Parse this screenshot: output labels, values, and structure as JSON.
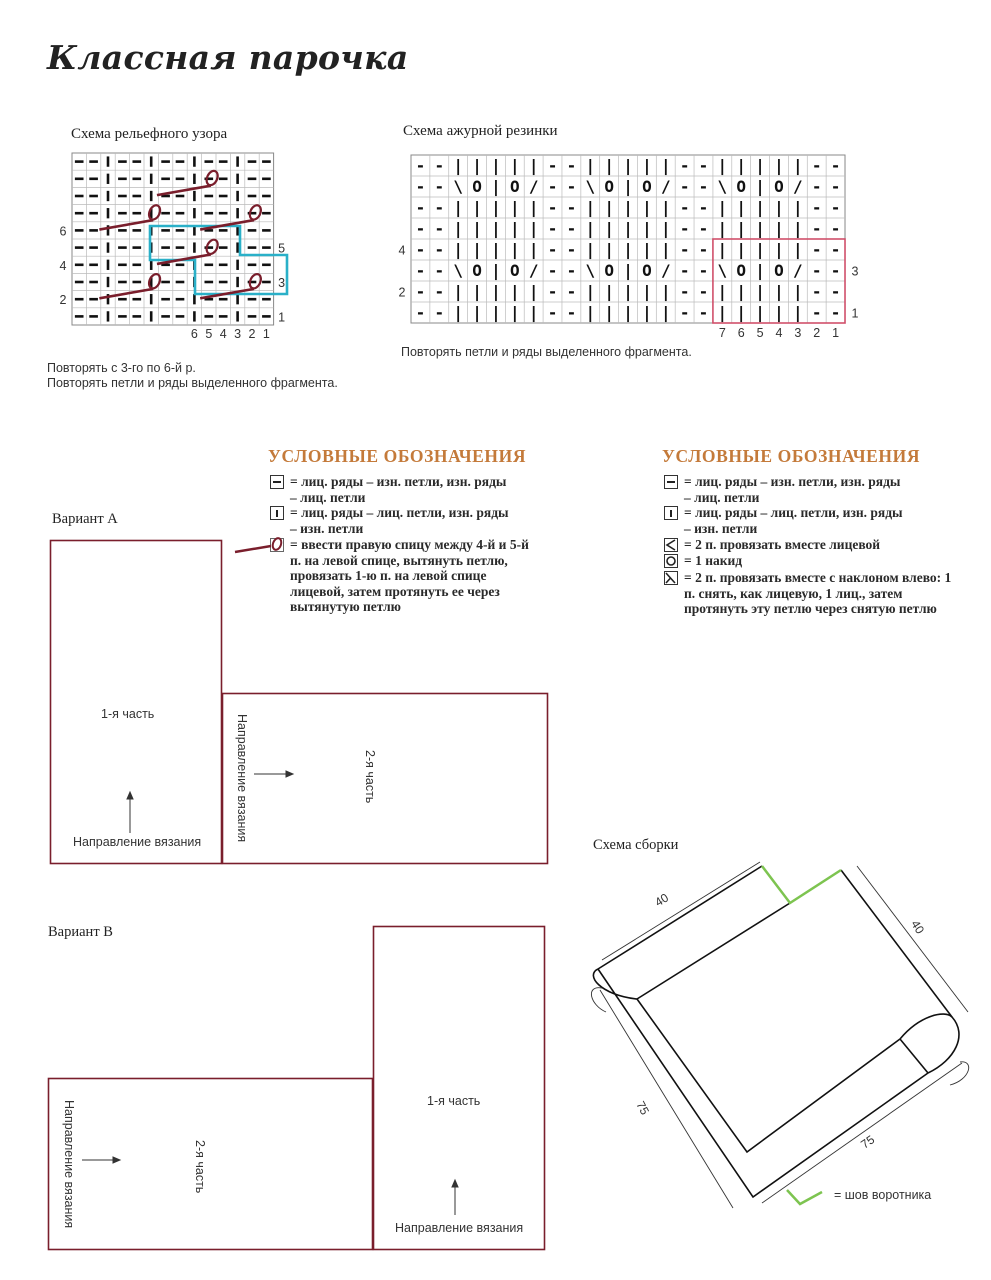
{
  "title": "Классная парочка",
  "relief_chart": {
    "caption": "Схема рельефного узора",
    "rows": [
      "--|--|--|--|--",
      "--|--|--|--|--",
      "--|--|--|--|--",
      "--|--|--|--|--",
      "--|--|--|--|--",
      "--|--|--|--|--",
      "--|--|--|--|--",
      "--|--|--|--|--",
      "--|--|--|--|--",
      "--|--|--|--|--"
    ],
    "loops": [
      {
        "row": 9,
        "col": 10
      },
      {
        "row": 7,
        "col": 6
      },
      {
        "row": 7,
        "col": 13
      },
      {
        "row": 5,
        "col": 10
      },
      {
        "row": 3,
        "col": 6
      },
      {
        "row": 3,
        "col": 13
      }
    ],
    "left_row_labels": [
      "6",
      "4",
      "2"
    ],
    "right_row_labels": [
      "5",
      "3",
      "1"
    ],
    "stitch_labels": [
      "6",
      "5",
      "4",
      "3",
      "2",
      "1"
    ],
    "repeat_color": "#2ab0c8",
    "loop_color": "#7a1e2c",
    "notes": [
      "Повторять с 3-го по 6-й р.",
      "Повторять петли и ряды выделенного фрагмента."
    ]
  },
  "lace_chart": {
    "caption": "Схема ажурной резинки",
    "rows": [
      "--|||||--|||||--|||||--",
      "--\\O|O/--\\O|O/--\\O|O/--",
      "--|||||--|||||--|||||--",
      "--|||||--|||||--|||||--",
      "--|||||--|||||--|||||--",
      "--\\O|O/--\\O|O/--\\O|O/--",
      "--|||||--|||||--|||||--",
      "--|||||--|||||--|||||--"
    ],
    "left_row_labels": [
      "4",
      "2"
    ],
    "right_row_labels": [
      "3",
      "1"
    ],
    "stitch_labels": [
      "7",
      "6",
      "5",
      "4",
      "3",
      "2",
      "1"
    ],
    "repeat_color": "#d0506a",
    "note": "Повторять петли и ряды выделенного фрагмента."
  },
  "legend_relief": {
    "heading": "УСЛОВНЫЕ ОБОЗНАЧЕНИЯ",
    "items": [
      {
        "symbol": "purl-icon",
        "text": "= лиц. ряды – изн. петли, изн. ряды – лиц. петли"
      },
      {
        "symbol": "knit-icon",
        "text": "= лиц. ряды – лиц. петли, изн. ряды – изн. петли"
      },
      {
        "symbol": "pulled-loop-icon",
        "text": "= ввести правую спицу между 4-й и 5-й п. на левой спице, вытянуть петлю, провязать 1-ю п. на левой спице лицевой, затем протянуть ее через вытянутую петлю"
      }
    ]
  },
  "legend_lace": {
    "heading": "УСЛОВНЫЕ ОБОЗНАЧЕНИЯ",
    "items": [
      {
        "symbol": "purl-icon",
        "text": "= лиц. ряды – изн. петли, изн. ряды – лиц. петли"
      },
      {
        "symbol": "knit-icon",
        "text": "= лиц. ряды – лиц. петли, изн. ряды – изн. петли"
      },
      {
        "symbol": "k2tog-icon",
        "text": "= 2 п. провязать вместе лицевой"
      },
      {
        "symbol": "yarn-over-icon",
        "text": "= 1 накид"
      },
      {
        "symbol": "ssk-icon",
        "text": "= 2 п. провязать вместе с наклоном влево: 1 п. снять, как лицевую, 1 лиц., затем протянуть эту петлю через снятую петлю"
      }
    ]
  },
  "variant_a": {
    "label": "Вариант А",
    "part1": "1-я часть",
    "part2": "2-я часть",
    "direction1": "Направление вязания",
    "direction2": "Направление вязания"
  },
  "variant_b": {
    "label": "Вариант В",
    "part1": "1-я часть",
    "part2": "2-я часть",
    "direction1": "Направление вязания",
    "direction2": "Направление вязания"
  },
  "assembly": {
    "caption": "Схема сборки",
    "dim_top_left": "40",
    "dim_top_right": "40",
    "dim_bottom_left": "75",
    "dim_bottom_right": "75",
    "seam_legend": "= шов воротника",
    "seam_color": "#7dc450"
  },
  "colors": {
    "outline": "#7a1e2c",
    "heading": "#c47a3a"
  }
}
